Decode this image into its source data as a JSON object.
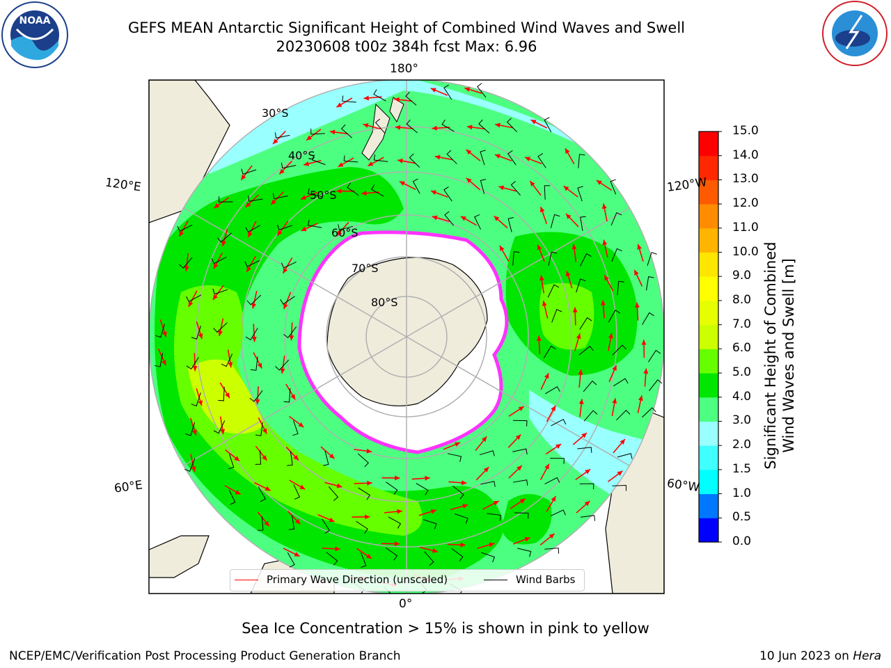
{
  "header": {
    "title_line1": "GEFS MEAN Antarctic Significant Height of Combined Wind Waves and Swell",
    "title_line2": "20230608 t00z 384h fcst   Max: 6.96"
  },
  "logos": {
    "left_text": "NOAA",
    "left_ring_text": "NATIONAL OCEANIC AND ATMOSPHERIC ADMINISTRATION · U.S. DEPARTMENT OF COMMERCE",
    "right_ring_text": "NATIONAL WEATHER SERVICE"
  },
  "map": {
    "projection": "south-polar-stereographic",
    "lon_labels": {
      "top": "180°",
      "bottom": "0°",
      "left_upper": "120°E",
      "left_lower": "60°E",
      "right_upper": "120°W",
      "right_lower": "60°W"
    },
    "lat_labels": [
      "30°S",
      "40°S",
      "50°S",
      "60°S",
      "70°S",
      "80°S"
    ],
    "colors": {
      "land": "#efecdc",
      "ocean_low": "#99ffff",
      "wave_3_4": "#4dff80",
      "wave_4_5": "#00e600",
      "wave_5_6": "#66ff00",
      "wave_6_7": "#ccff00",
      "ice_edge": "#ff33ff",
      "arrows": "#ff0000",
      "barbs": "#000000"
    }
  },
  "legend": {
    "items": [
      {
        "label": "Primary Wave Direction (unscaled)",
        "color": "#ff0000"
      },
      {
        "label": "Wind Barbs",
        "color": "#000000"
      }
    ]
  },
  "colorbar": {
    "label_line1": "Significant Height of Combined",
    "label_line2": "Wind Waves and Swell [m]",
    "levels": [
      0.0,
      0.5,
      1.0,
      1.5,
      2.0,
      3.0,
      4.0,
      5.0,
      6.0,
      7.0,
      8.0,
      9.0,
      10.0,
      11.0,
      12.0,
      13.0,
      14.0,
      15.0
    ],
    "tick_labels": [
      "0.0",
      "0.5",
      "1.0",
      "1.5",
      "2.0",
      "3.0",
      "4.0",
      "5.0",
      "6.0",
      "7.0",
      "8.0",
      "9.0",
      "10.0",
      "11.0",
      "12.0",
      "13.0",
      "14.0",
      "15.0"
    ],
    "colors": [
      "#0000ff",
      "#0077ff",
      "#00ffff",
      "#40ffff",
      "#99ffff",
      "#4dff80",
      "#00e600",
      "#66ff00",
      "#ccff00",
      "#e6ff00",
      "#ffff00",
      "#ffe600",
      "#ffb400",
      "#ff8c00",
      "#ff5a00",
      "#ff2800",
      "#ff0000"
    ]
  },
  "caption": "Sea Ice Concentration > 15% is shown in pink to yellow",
  "footer": {
    "left": "NCEP/EMC/Verification Post Processing Product Generation Branch",
    "right_prefix": "10 Jun 2023 on ",
    "right_system": "Hera"
  }
}
